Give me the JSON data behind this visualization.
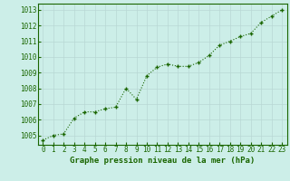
{
  "x": [
    0,
    1,
    2,
    3,
    4,
    5,
    6,
    7,
    8,
    9,
    10,
    11,
    12,
    13,
    14,
    15,
    16,
    17,
    18,
    19,
    20,
    21,
    22,
    23
  ],
  "y": [
    1004.7,
    1005.0,
    1005.1,
    1006.1,
    1006.5,
    1006.5,
    1006.7,
    1006.8,
    1008.0,
    1007.3,
    1008.8,
    1009.35,
    1009.55,
    1009.4,
    1009.4,
    1009.65,
    1010.1,
    1010.75,
    1011.0,
    1011.3,
    1011.5,
    1012.2,
    1012.6,
    1013.0
  ],
  "line_color": "#1a6600",
  "marker_color": "#1a6600",
  "bg_color": "#cceee8",
  "grid_color": "#b8d8d4",
  "xlabel": "Graphe pression niveau de la mer (hPa)",
  "ylabel": "",
  "ylim": [
    1004.4,
    1013.4
  ],
  "xlim": [
    -0.5,
    23.5
  ],
  "yticks": [
    1005,
    1006,
    1007,
    1008,
    1009,
    1010,
    1011,
    1012,
    1013
  ],
  "xticks": [
    0,
    1,
    2,
    3,
    4,
    5,
    6,
    7,
    8,
    9,
    10,
    11,
    12,
    13,
    14,
    15,
    16,
    17,
    18,
    19,
    20,
    21,
    22,
    23
  ],
  "xlabel_fontsize": 6.5,
  "tick_fontsize": 5.5,
  "line_width": 0.8,
  "marker_size": 3.5,
  "marker_style": "+"
}
